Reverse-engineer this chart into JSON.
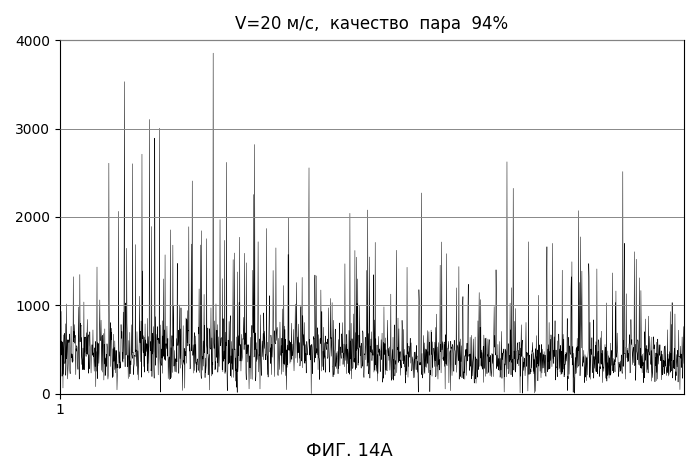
{
  "title": "V=20 м/с,  качество  пара  94%",
  "xlabel_tick": "1",
  "ylim": [
    0,
    4000
  ],
  "xlim_start": 1,
  "n_points": 2000,
  "base_level": 420,
  "background_color": "#ffffff",
  "line_color": "#000000",
  "grid_color": "#888888",
  "title_fontsize": 12,
  "tick_fontsize": 10,
  "caption": "ФИГ. 14А",
  "caption_fontsize": 13,
  "yticks": [
    0,
    1000,
    2000,
    3000,
    4000
  ],
  "seed": 7
}
